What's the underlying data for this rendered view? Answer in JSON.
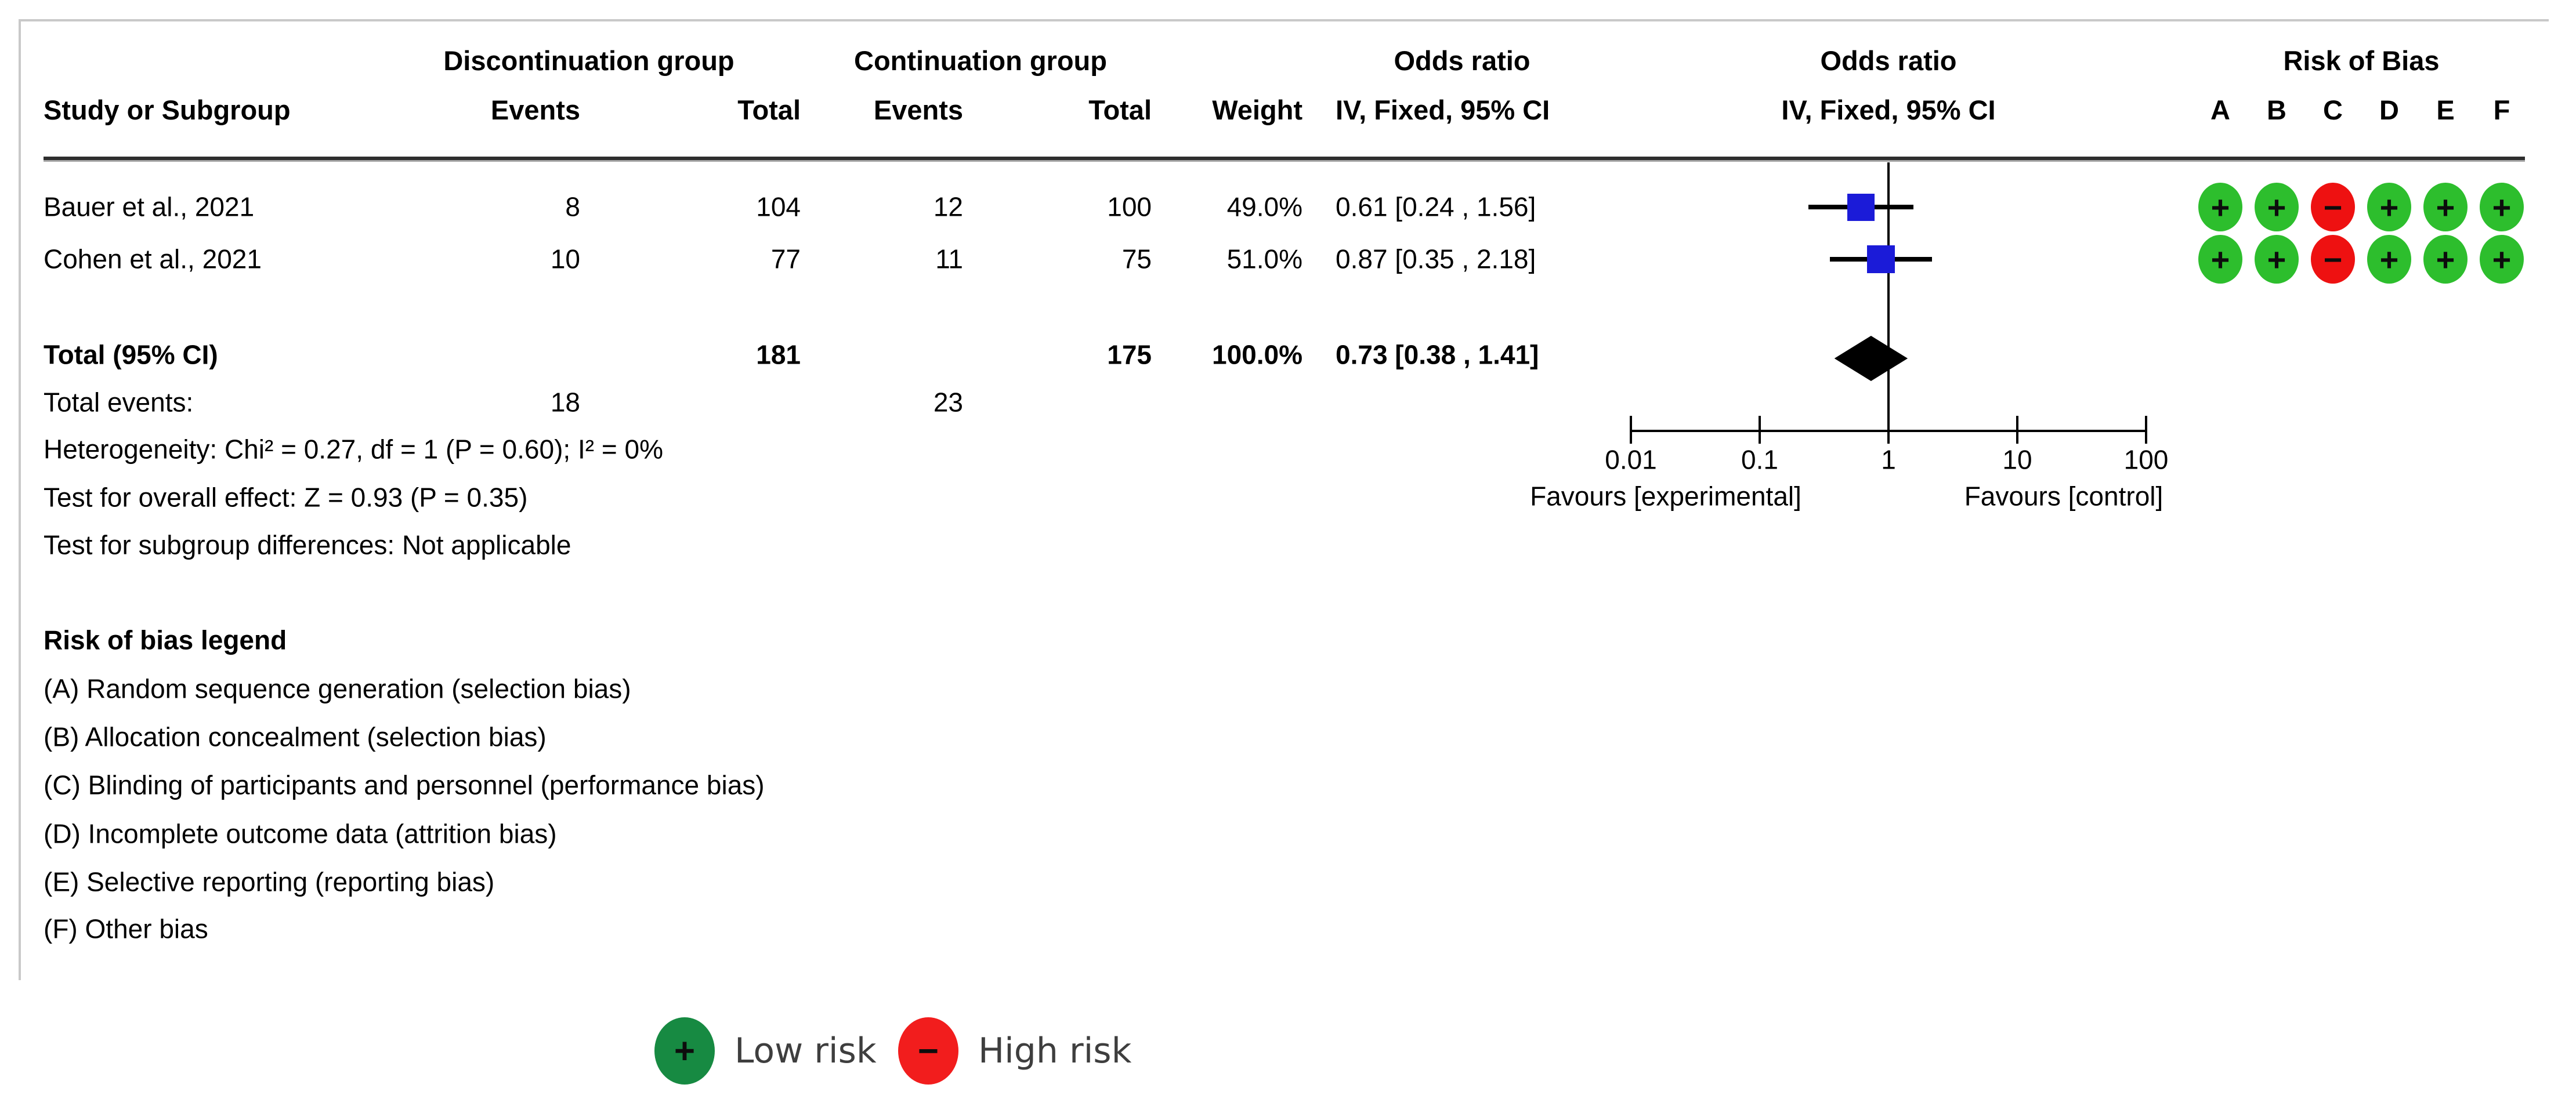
{
  "figure": {
    "headers": {
      "study": "Study or Subgroup",
      "group1": "Discontinuation group",
      "group2": "Continuation group",
      "events1": "Events",
      "total1": "Total",
      "events2": "Events",
      "total2": "Total",
      "weight": "Weight",
      "or_text_title": "Odds ratio",
      "or_text_sub": "IV, Fixed, 95% CI",
      "or_plot_title": "Odds ratio",
      "or_plot_sub": "IV, Fixed, 95% CI",
      "rob_title": "Risk of Bias",
      "rob_cols": [
        "A",
        "B",
        "C",
        "D",
        "E",
        "F"
      ]
    },
    "rows": [
      {
        "study": "Bauer et al., 2021",
        "e1": "8",
        "t1": "104",
        "e2": "12",
        "t2": "100",
        "weight": "49.0%",
        "ci": "0.61 [0.24 , 1.56]",
        "rob": [
          "low",
          "low",
          "high",
          "low",
          "low",
          "low"
        ]
      },
      {
        "study": "Cohen et al., 2021",
        "e1": "10",
        "t1": "77",
        "e2": "11",
        "t2": "75",
        "weight": "51.0%",
        "ci": "0.87 [0.35 , 2.18]",
        "rob": [
          "low",
          "low",
          "high",
          "low",
          "low",
          "low"
        ]
      }
    ],
    "total_row": {
      "label": "Total (95% CI)",
      "t1": "181",
      "t2": "175",
      "weight": "100.0%",
      "ci": "0.73 [0.38 , 1.41]"
    },
    "total_events": {
      "label": "Total events:",
      "e1": "18",
      "e2": "23"
    },
    "stats": {
      "heterogeneity": "Heterogeneity: Chi² = 0.27, df = 1 (P = 0.60); I² = 0%",
      "overall_effect": "Test for overall effect: Z = 0.93 (P = 0.35)",
      "subgroup_diff": "Test for subgroup differences: Not applicable"
    },
    "rob_legend": {
      "title": "Risk of bias legend",
      "items": [
        "(A) Random sequence generation (selection bias)",
        "(B) Allocation concealment (selection bias)",
        "(C) Blinding of participants and personnel (performance bias)",
        "(D) Incomplete outcome data (attrition bias)",
        "(E) Selective reporting (reporting bias)",
        "(F) Other bias"
      ]
    },
    "bottom_legend": {
      "low": {
        "symbol": "+",
        "label": "Low risk"
      },
      "high": {
        "symbol": "−",
        "label": "High risk"
      }
    }
  },
  "chart_data": {
    "type": "forest",
    "effect_measure": "Odds ratio",
    "model": "IV, Fixed, 95% CI",
    "x_scale": "log10",
    "x_ticks": [
      0.01,
      0.1,
      1,
      10,
      100
    ],
    "xlim": [
      0.01,
      100
    ],
    "xlabel_left": "Favours [experimental]",
    "xlabel_right": "Favours [control]",
    "studies": [
      {
        "name": "Bauer et al., 2021",
        "events_exp": 8,
        "total_exp": 104,
        "events_ctrl": 12,
        "total_ctrl": 100,
        "weight_pct": 49.0,
        "or": 0.61,
        "ci_low": 0.24,
        "ci_high": 1.56
      },
      {
        "name": "Cohen et al., 2021",
        "events_exp": 10,
        "total_exp": 77,
        "events_ctrl": 11,
        "total_ctrl": 75,
        "weight_pct": 51.0,
        "or": 0.87,
        "ci_low": 0.35,
        "ci_high": 2.18
      }
    ],
    "total": {
      "total_exp": 181,
      "total_ctrl": 175,
      "events_exp": 18,
      "events_ctrl": 23,
      "weight_pct": 100.0,
      "or": 0.73,
      "ci_low": 0.38,
      "ci_high": 1.41
    },
    "heterogeneity": {
      "chi2": 0.27,
      "df": 1,
      "p": 0.6,
      "i2_pct": 0
    },
    "overall_effect": {
      "z": 0.93,
      "p": 0.35
    }
  },
  "colors": {
    "square_blue": "#1b1bd8",
    "diamond_black": "#000000",
    "low_risk_green": "#2dbe2d",
    "high_risk_red": "#ee1111",
    "legend_green": "#178a42",
    "legend_red": "#f21d1d",
    "frame_gray": "#c9c9c9",
    "legend_text_gray": "#3e3e3e"
  }
}
